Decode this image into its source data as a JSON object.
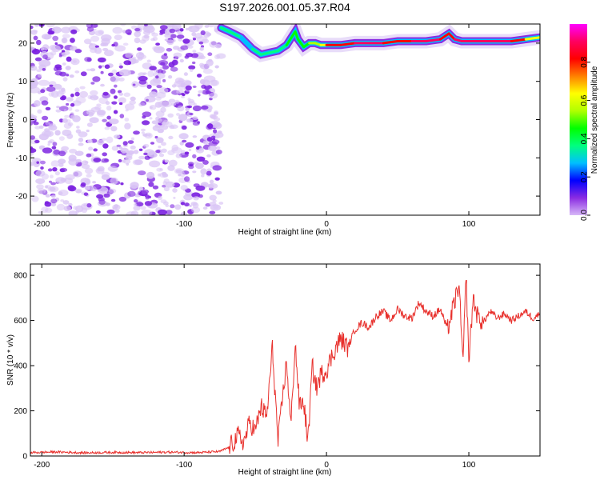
{
  "title": "S197.2026.001.05.37.R04",
  "colors": {
    "snr_line": "#e8302c",
    "speckle_dark": "#7a1fe0",
    "speckle_light": "#d9c4f5",
    "colorbar": [
      "#d7b8f7",
      "#8a2be2",
      "#0000ff",
      "#00bfff",
      "#00ff7f",
      "#00ff00",
      "#b0ff00",
      "#ffff00",
      "#ff8000",
      "#ff0000",
      "#ff0060",
      "#ff00ff"
    ]
  },
  "chart_data": [
    {
      "type": "heatmap",
      "xlabel": "Height of straight line (km)",
      "ylabel": "Frequency (Hz)",
      "xlim": [
        -208,
        150
      ],
      "ylim": [
        -25,
        25
      ],
      "xticks": [
        -200,
        -100,
        0,
        100
      ],
      "yticks": [
        -20,
        -10,
        0,
        10,
        20
      ],
      "xtick_labels": [
        "-200",
        "-100",
        "0",
        "100"
      ],
      "ytick_labels": [
        "-20",
        "-10",
        "0",
        "10",
        "20"
      ],
      "noise_region_x": [
        -208,
        -74
      ],
      "ridge": {
        "x": [
          -74,
          -68,
          -60,
          -52,
          -46,
          -40,
          -34,
          -28,
          -22,
          -20,
          -16,
          -12,
          -8,
          -4,
          0,
          10,
          20,
          30,
          40,
          50,
          60,
          70,
          80,
          86,
          90,
          95,
          100,
          110,
          120,
          130,
          140,
          150
        ],
        "freq": [
          24,
          23,
          21.5,
          18.5,
          17,
          17.5,
          18,
          19.5,
          23,
          21,
          19,
          20,
          20,
          19.5,
          19.5,
          19.5,
          20,
          20,
          20,
          20.5,
          20.5,
          20.5,
          21,
          22.5,
          21,
          20.5,
          20.5,
          20.5,
          20.5,
          20.5,
          21,
          21.5
        ],
        "amp": [
          0.3,
          0.35,
          0.3,
          0.3,
          0.35,
          0.35,
          0.4,
          0.35,
          0.5,
          0.4,
          0.45,
          0.5,
          0.55,
          0.6,
          0.75,
          0.8,
          0.85,
          0.9,
          0.85,
          0.8,
          0.85,
          0.9,
          0.9,
          0.75,
          0.9,
          0.95,
          0.95,
          0.95,
          0.95,
          0.9,
          0.7,
          0.6
        ]
      },
      "colorbar": {
        "label": "Normalized spectral amplitude",
        "range": [
          0.0,
          1.0
        ],
        "ticks": [
          0.0,
          0.2,
          0.4,
          0.6,
          0.8
        ],
        "tick_labels": [
          "0.0",
          "0.2",
          "0.4",
          "0.6",
          "0.8"
        ]
      }
    },
    {
      "type": "line",
      "xlabel": "Height of straight line (km)",
      "ylabel": "SNR (10 * v/v)",
      "xlim": [
        -208,
        150
      ],
      "ylim": [
        0,
        850
      ],
      "xticks": [
        -200,
        -100,
        0,
        100
      ],
      "yticks": [
        0,
        200,
        400,
        600,
        800
      ],
      "xtick_labels": [
        "-200",
        "-100",
        "0",
        "100"
      ],
      "ytick_labels": [
        "0",
        "200",
        "400",
        "600",
        "800"
      ],
      "series": [
        {
          "name": "SNR",
          "x": [
            -208,
            -190,
            -170,
            -150,
            -130,
            -110,
            -90,
            -75,
            -68,
            -62,
            -58,
            -54,
            -50,
            -46,
            -42,
            -38,
            -34,
            -31,
            -28,
            -25,
            -22,
            -19,
            -16,
            -13,
            -10,
            -7,
            -4,
            0,
            5,
            10,
            15,
            20,
            25,
            30,
            35,
            40,
            45,
            50,
            55,
            60,
            65,
            70,
            75,
            80,
            85,
            90,
            93,
            96,
            98,
            100,
            103,
            106,
            110,
            115,
            120,
            125,
            130,
            135,
            140,
            145,
            150
          ],
          "y": [
            15,
            18,
            14,
            16,
            15,
            17,
            15,
            20,
            40,
            90,
            60,
            150,
            110,
            220,
            170,
            480,
            60,
            250,
            420,
            130,
            500,
            220,
            240,
            60,
            400,
            300,
            360,
            380,
            460,
            520,
            480,
            560,
            590,
            570,
            620,
            640,
            600,
            650,
            620,
            610,
            680,
            640,
            620,
            650,
            560,
            680,
            760,
            400,
            820,
            420,
            700,
            620,
            590,
            640,
            610,
            630,
            600,
            620,
            640,
            610,
            630
          ]
        }
      ]
    }
  ]
}
